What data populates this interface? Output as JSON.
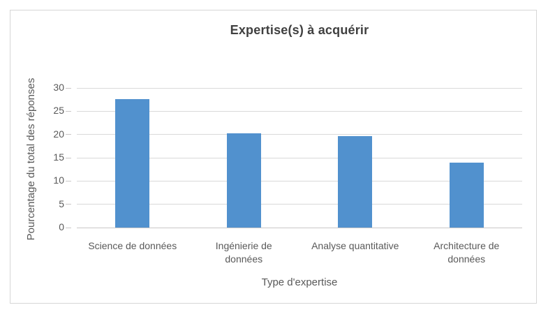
{
  "chart_data": {
    "type": "bar",
    "title": "Expertise(s) à acquérir",
    "categories": [
      "Science de données",
      "Ingénierie de\ndonnées",
      "Analyse quantitative",
      "Architecture de\ndonnées"
    ],
    "values": [
      27.6,
      20.3,
      19.7,
      14.0
    ],
    "xlabel": "Type d'expertise",
    "ylabel": "Pourcentage du total des réponses",
    "ylim": [
      0,
      30
    ],
    "ytick_step": 5,
    "ytick_labels": [
      "0",
      "5",
      "10",
      "15",
      "20",
      "25",
      "30"
    ],
    "grid": "horizontal",
    "legend": "none"
  },
  "colors": {
    "bar_fill": "#5191CE",
    "gridline": "#D9D9D9",
    "axis_line": "#C9C7C7",
    "frame_border": "#D6D6D6",
    "title_text": "#404040",
    "label_text": "#595959",
    "background": "#FFFFFF"
  }
}
